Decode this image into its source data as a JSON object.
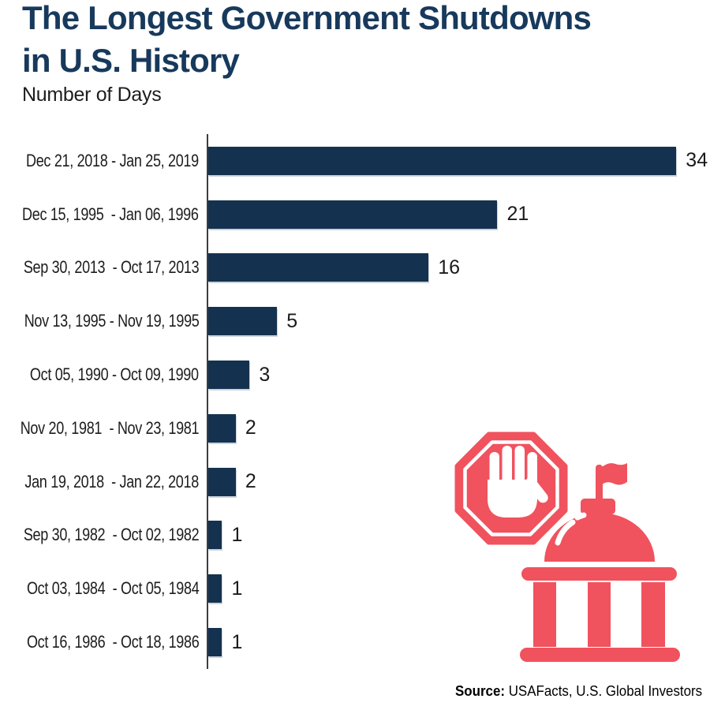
{
  "title": {
    "line1": "The Longest Government Shutdowns",
    "line2": "in U.S. History"
  },
  "subtitle": "Number of Days",
  "source": {
    "label": "Source:",
    "names": " USAFacts, U.S. Global Investors"
  },
  "colors": {
    "title_navy": "#17395C",
    "bar_navy": "#14324F",
    "illustration_red": "#F0525E",
    "axis_gray": "#3D3D3D",
    "label_text": "#1C1C1E"
  },
  "illustration": {
    "stop_sign": "stop-sign-hand-icon",
    "capitol": "capitol-building-icon"
  },
  "chart_data": {
    "type": "bar",
    "orientation": "horizontal",
    "title": "The Longest Government Shutdowns in U.S. History",
    "subtitle": "Number of Days",
    "xlabel": "",
    "ylabel": "",
    "xlim": [
      0,
      34
    ],
    "grid": false,
    "legend": "none",
    "value_labels_shown": true,
    "bar_color": "#14324F",
    "categories": [
      "Dec 21, 2018 - Jan 25, 2019",
      "Dec 15, 1995  - Jan 06, 1996",
      "Sep 30, 2013  - Oct 17, 2013",
      "Nov 13, 1995 - Nov 19, 1995",
      "Oct 05, 1990 - Oct 09, 1990",
      "Nov 20, 1981  - Nov 23, 1981",
      "Jan 19, 2018  - Jan 22, 2018",
      "Sep 30, 1982  - Oct 02, 1982",
      "Oct 03, 1984  - Oct 05, 1984",
      "Oct 16, 1986  - Oct 18, 1986"
    ],
    "values": [
      34,
      21,
      16,
      5,
      3,
      2,
      2,
      1,
      1,
      1
    ]
  }
}
